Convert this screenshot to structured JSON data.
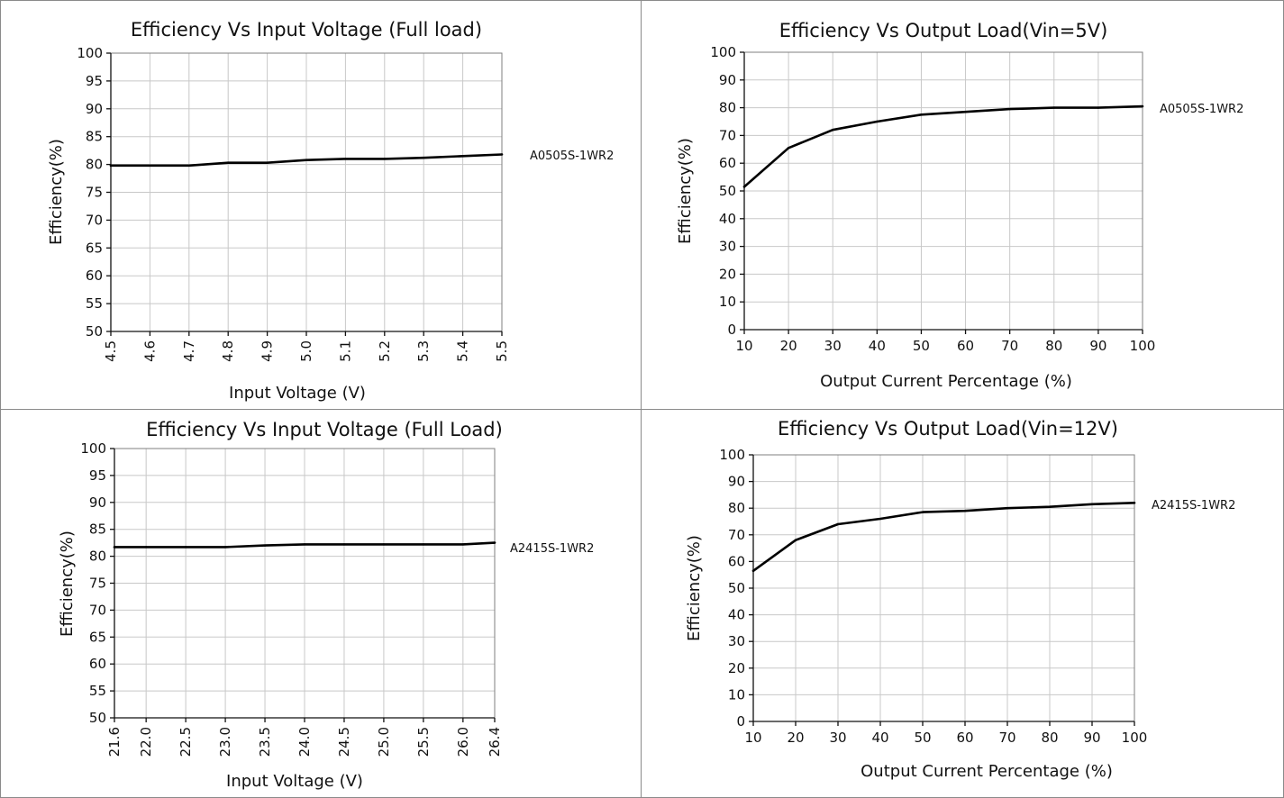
{
  "chart_data": [
    {
      "type": "line",
      "title": "Efficiency Vs Input Voltage (Full load)",
      "xlabel": "Input Voltage (V)",
      "ylabel": "Efficiency(%)",
      "x_ticks": [
        "4.5",
        "4.6",
        "4.7",
        "4.8",
        "4.9",
        "5.0",
        "5.1",
        "5.2",
        "5.3",
        "5.4",
        "5.5"
      ],
      "y_ticks": [
        "50",
        "55",
        "60",
        "65",
        "70",
        "75",
        "80",
        "85",
        "90",
        "95",
        "100"
      ],
      "xlim": [
        4.5,
        5.5
      ],
      "ylim": [
        50,
        100
      ],
      "x_tick_rotation": "vertical",
      "grid": true,
      "series": [
        {
          "name": "A0505S-1WR2",
          "x": [
            4.5,
            4.6,
            4.7,
            4.8,
            4.9,
            5.0,
            5.1,
            5.2,
            5.3,
            5.4,
            5.5
          ],
          "y": [
            79.8,
            79.8,
            79.8,
            80.3,
            80.3,
            80.8,
            81.0,
            81.0,
            81.2,
            81.5,
            81.8
          ]
        }
      ]
    },
    {
      "type": "line",
      "title": "Efficiency Vs Output Load(Vin=5V)",
      "xlabel": "Output Current Percentage (%)",
      "ylabel": "Efficiency(%)",
      "x_ticks": [
        "10",
        "20",
        "30",
        "40",
        "50",
        "60",
        "70",
        "80",
        "90",
        "100"
      ],
      "y_ticks": [
        "0",
        "10",
        "20",
        "30",
        "40",
        "50",
        "60",
        "70",
        "80",
        "90",
        "100"
      ],
      "xlim": [
        10,
        100
      ],
      "ylim": [
        0,
        100
      ],
      "x_tick_rotation": "horizontal",
      "grid": true,
      "series": [
        {
          "name": "A0505S-1WR2",
          "x": [
            10,
            20,
            30,
            40,
            50,
            60,
            70,
            80,
            90,
            100
          ],
          "y": [
            51.5,
            65.5,
            72,
            75,
            77.5,
            78.5,
            79.5,
            80,
            80,
            80.5
          ]
        }
      ]
    },
    {
      "type": "line",
      "title": "Efficiency Vs Input Voltage (Full Load)",
      "xlabel": "Input Voltage (V)",
      "ylabel": "Efficiency(%)",
      "x_ticks": [
        "21.6",
        "22.0",
        "22.5",
        "23.0",
        "23.5",
        "24.0",
        "24.5",
        "25.0",
        "25.5",
        "26.0",
        "26.4"
      ],
      "y_ticks": [
        "50",
        "55",
        "60",
        "65",
        "70",
        "75",
        "80",
        "85",
        "90",
        "95",
        "100"
      ],
      "xlim": [
        21.6,
        26.4
      ],
      "ylim": [
        50,
        100
      ],
      "x_tick_rotation": "vertical",
      "grid": true,
      "series": [
        {
          "name": "A2415S-1WR2",
          "x": [
            21.6,
            22.0,
            22.5,
            23.0,
            23.5,
            24.0,
            24.5,
            25.0,
            25.5,
            26.0,
            26.4
          ],
          "y": [
            81.7,
            81.7,
            81.7,
            81.7,
            82.0,
            82.2,
            82.2,
            82.2,
            82.2,
            82.2,
            82.5
          ]
        }
      ]
    },
    {
      "type": "line",
      "title": "Efficiency Vs Output Load(Vin=12V)",
      "xlabel": "Output Current Percentage (%)",
      "ylabel": "Efficiency(%)",
      "x_ticks": [
        "10",
        "20",
        "30",
        "40",
        "50",
        "60",
        "70",
        "80",
        "90",
        "100"
      ],
      "y_ticks": [
        "0",
        "10",
        "20",
        "30",
        "40",
        "50",
        "60",
        "70",
        "80",
        "90",
        "100"
      ],
      "xlim": [
        10,
        100
      ],
      "ylim": [
        0,
        100
      ],
      "x_tick_rotation": "horizontal",
      "grid": true,
      "series": [
        {
          "name": "A2415S-1WR2",
          "x": [
            10,
            20,
            30,
            40,
            50,
            60,
            70,
            80,
            90,
            100
          ],
          "y": [
            56.5,
            68,
            74,
            76,
            78.5,
            79,
            80,
            80.5,
            81.5,
            82
          ]
        }
      ]
    }
  ],
  "colors": {
    "line": "#000000",
    "grid": "#c8c8c8",
    "plot_frame": "#7f7f7f",
    "cell_border": "#8a8a8a",
    "background": "#ffffff"
  }
}
